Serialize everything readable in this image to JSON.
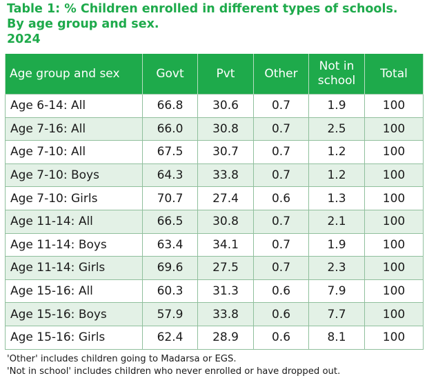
{
  "title": {
    "line1": "Table 1: % Children enrolled in different types of schools.",
    "line2": "By age group and sex.",
    "line3": "2024"
  },
  "table": {
    "headers": {
      "label": "Age group and sex",
      "govt": "Govt",
      "pvt": "Pvt",
      "other": "Other",
      "not_in_school_line1": "Not in",
      "not_in_school_line2": "school",
      "total": "Total"
    },
    "rows": [
      {
        "label": "Age 6-14: All",
        "govt": "66.8",
        "pvt": "30.6",
        "other": "0.7",
        "not_in_school": "1.9",
        "total": "100"
      },
      {
        "label": "Age 7-16: All",
        "govt": "66.0",
        "pvt": "30.8",
        "other": "0.7",
        "not_in_school": "2.5",
        "total": "100"
      },
      {
        "label": "Age 7-10: All",
        "govt": "67.5",
        "pvt": "30.7",
        "other": "0.7",
        "not_in_school": "1.2",
        "total": "100"
      },
      {
        "label": "Age 7-10: Boys",
        "govt": "64.3",
        "pvt": "33.8",
        "other": "0.7",
        "not_in_school": "1.2",
        "total": "100"
      },
      {
        "label": "Age 7-10: Girls",
        "govt": "70.7",
        "pvt": "27.4",
        "other": "0.6",
        "not_in_school": "1.3",
        "total": "100"
      },
      {
        "label": "Age 11-14: All",
        "govt": "66.5",
        "pvt": "30.8",
        "other": "0.7",
        "not_in_school": "2.1",
        "total": "100"
      },
      {
        "label": "Age 11-14: Boys",
        "govt": "63.4",
        "pvt": "34.1",
        "other": "0.7",
        "not_in_school": "1.9",
        "total": "100"
      },
      {
        "label": "Age 11-14: Girls",
        "govt": "69.6",
        "pvt": "27.5",
        "other": "0.7",
        "not_in_school": "2.3",
        "total": "100"
      },
      {
        "label": "Age 15-16: All",
        "govt": "60.3",
        "pvt": "31.3",
        "other": "0.6",
        "not_in_school": "7.9",
        "total": "100"
      },
      {
        "label": "Age 15-16: Boys",
        "govt": "57.9",
        "pvt": "33.8",
        "other": "0.6",
        "not_in_school": "7.7",
        "total": "100"
      },
      {
        "label": "Age 15-16: Girls",
        "govt": "62.4",
        "pvt": "28.9",
        "other": "0.6",
        "not_in_school": "8.1",
        "total": "100"
      }
    ]
  },
  "notes": {
    "line1": "'Other' includes children going to Madarsa or EGS.",
    "line2": "'Not in school' includes children who never enrolled or have dropped out."
  },
  "colors": {
    "accent_green": "#1eaa4b",
    "row_stripe": "#e3f1e6",
    "cell_border": "#8fbf9c"
  }
}
